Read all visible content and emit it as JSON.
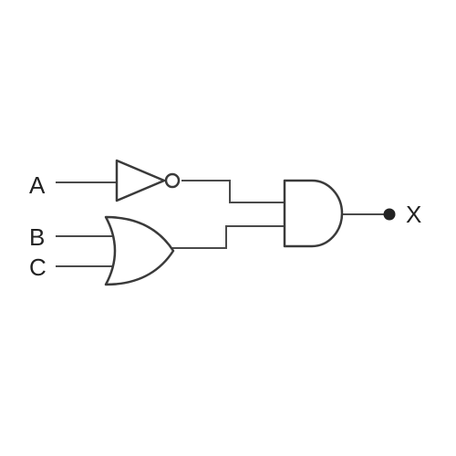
{
  "inputs": {
    "a": "A",
    "b": "B",
    "c": "C"
  },
  "output": {
    "x": "X"
  },
  "colors": {
    "line": "#3a3a3a",
    "background": "#ffffff"
  }
}
